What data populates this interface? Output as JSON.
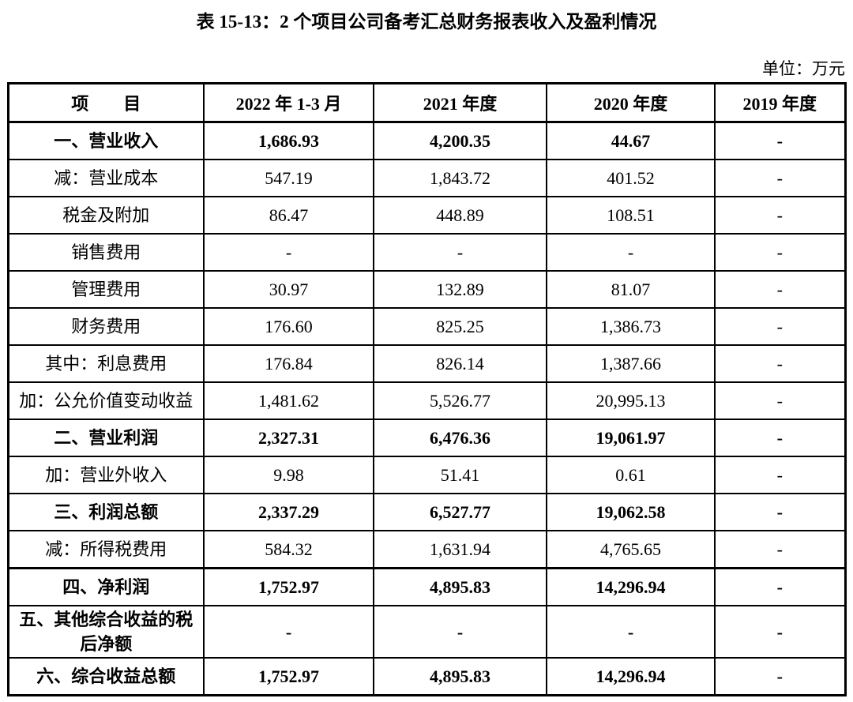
{
  "page": {
    "title": "表 15-13：2 个项目公司备考汇总财务报表收入及盈利情况",
    "unit_label": "单位：万元"
  },
  "table": {
    "columns": [
      "项　　目",
      "2022 年 1-3 月",
      "2021 年度",
      "2020 年度",
      "2019 年度"
    ],
    "rows": [
      {
        "label": "一、营业收入",
        "bold": true,
        "values": [
          "1,686.93",
          "4,200.35",
          "44.67",
          "-"
        ]
      },
      {
        "label": "减：营业成本",
        "bold": false,
        "values": [
          "547.19",
          "1,843.72",
          "401.52",
          "-"
        ]
      },
      {
        "label": "税金及附加",
        "bold": false,
        "values": [
          "86.47",
          "448.89",
          "108.51",
          "-"
        ]
      },
      {
        "label": "销售费用",
        "bold": false,
        "values": [
          "-",
          "-",
          "-",
          "-"
        ]
      },
      {
        "label": "管理费用",
        "bold": false,
        "values": [
          "30.97",
          "132.89",
          "81.07",
          "-"
        ]
      },
      {
        "label": "财务费用",
        "bold": false,
        "values": [
          "176.60",
          "825.25",
          "1,386.73",
          "-"
        ]
      },
      {
        "label": "其中：利息费用",
        "bold": false,
        "values": [
          "176.84",
          "826.14",
          "1,387.66",
          "-"
        ]
      },
      {
        "label": "加：公允价值变动收益",
        "bold": false,
        "values": [
          "1,481.62",
          "5,526.77",
          "20,995.13",
          "-"
        ]
      },
      {
        "label": "二、营业利润",
        "bold": true,
        "values": [
          "2,327.31",
          "6,476.36",
          "19,061.97",
          "-"
        ]
      },
      {
        "label": "加：营业外收入",
        "bold": false,
        "values": [
          "9.98",
          "51.41",
          "0.61",
          "-"
        ]
      },
      {
        "label": "三、利润总额",
        "bold": true,
        "values": [
          "2,337.29",
          "6,527.77",
          "19,062.58",
          "-"
        ]
      },
      {
        "label": "减：所得税费用",
        "bold": false,
        "values": [
          "584.32",
          "1,631.94",
          "4,765.65",
          "-"
        ]
      },
      {
        "label": "四、净利润",
        "bold": true,
        "values": [
          "1,752.97",
          "4,895.83",
          "14,296.94",
          "-"
        ]
      },
      {
        "label": "五、其他综合收益的税后净额",
        "bold": true,
        "values": [
          "-",
          "-",
          "-",
          "-"
        ]
      },
      {
        "label": "六、综合收益总额",
        "bold": true,
        "values": [
          "1,752.97",
          "4,895.83",
          "14,296.94",
          "-"
        ]
      }
    ]
  }
}
